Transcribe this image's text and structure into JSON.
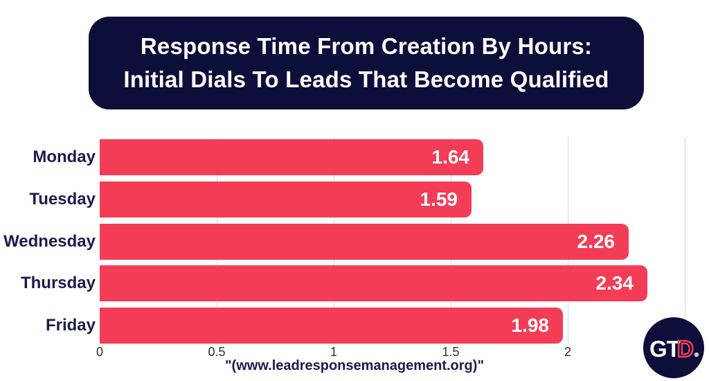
{
  "title": {
    "line1": "Response Time From Creation By Hours:",
    "line2": "Initial Dials To Leads That Become Qualified"
  },
  "source": "\"(www.leadresponsemanagement.org)\"",
  "logo": {
    "gt": "GT",
    "d": "D"
  },
  "colors": {
    "navy": "#0e0e3a",
    "bar": "#f33d56",
    "label_navy": "#1b1b4e",
    "gridline": "#d8d8d8",
    "logo_d_stroke": "#f23f5a"
  },
  "chart_data": {
    "type": "bar",
    "orientation": "horizontal",
    "title": "Response Time From Creation By Hours: Initial Dials To Leads That Become Qualified",
    "categories": [
      "Monday",
      "Tuesday",
      "Wednesday",
      "Thursday",
      "Friday"
    ],
    "values": [
      1.64,
      1.59,
      2.26,
      2.34,
      1.98
    ],
    "value_labels": [
      "1.64",
      "1.59",
      "2.26",
      "2.34",
      "1.98"
    ],
    "xlabel": "",
    "ylabel": "",
    "xlim": [
      0,
      2.56
    ],
    "x_ticks": [
      0,
      0.5,
      1,
      1.5,
      2
    ],
    "x_tick_labels": [
      "0",
      "0.5",
      "1",
      "1.5",
      "2"
    ],
    "gridlines_at": [
      0.5,
      1,
      1.5,
      2,
      2.5
    ],
    "grid": true,
    "legend": false,
    "value_labels_inside_bars": true
  }
}
